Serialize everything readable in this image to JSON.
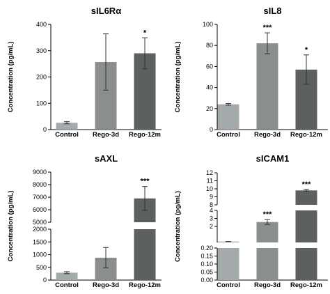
{
  "chart_data": [
    {
      "type": "bar",
      "title": "sIL6Rα",
      "ylabel": "Concentration (pg/mL)",
      "categories": [
        "Control",
        "Rego-3d",
        "Rego-12m"
      ],
      "values": [
        26,
        257,
        290
      ],
      "errors": [
        4,
        107,
        59
      ],
      "significance": [
        "",
        "",
        "*"
      ],
      "colors": [
        "#a4a9ab",
        "#8a8e8d",
        "#5c605f"
      ],
      "ylim": [
        0,
        400
      ],
      "yticks": [
        0,
        100,
        200,
        300,
        400
      ]
    },
    {
      "type": "bar",
      "title": "sIL8",
      "ylabel": "Concentration (pg/mL)",
      "categories": [
        "Control",
        "Rego-3d",
        "Rego-12m"
      ],
      "values": [
        24,
        82,
        57
      ],
      "errors": [
        0.8,
        10,
        14
      ],
      "significance": [
        "",
        "***",
        "*"
      ],
      "colors": [
        "#a4a9ab",
        "#8a8e8d",
        "#5c605f"
      ],
      "ylim": [
        0,
        100
      ],
      "yticks": [
        0,
        20,
        40,
        60,
        80,
        100
      ]
    },
    {
      "type": "bar",
      "title": "sAXL",
      "ylabel": "Concentration (pg/mL)",
      "categories": [
        "Control",
        "Rego-3d",
        "Rego-12m"
      ],
      "values": [
        290,
        880,
        6900
      ],
      "errors": [
        40,
        400,
        950
      ],
      "significance": [
        "",
        "",
        "***"
      ],
      "colors": [
        "#a4a9ab",
        "#8a8e8d",
        "#5c605f"
      ],
      "broken_axis": {
        "lower": [
          0,
          2000
        ],
        "upper": [
          5000,
          9000
        ],
        "lower_ticks": [
          0,
          500,
          1000,
          1500,
          2000
        ],
        "upper_ticks": [
          5000,
          6000,
          7000,
          8000,
          9000
        ]
      }
    },
    {
      "type": "bar",
      "title": "sICAM1",
      "ylabel": "Concentration (pg/mL)",
      "categories": [
        "Control",
        "Rego-3d",
        "Rego-12m"
      ],
      "values": [
        0.11,
        2.55,
        9.8
      ],
      "errors": [
        0.005,
        0.3,
        0.12
      ],
      "significance": [
        "",
        "***",
        "***"
      ],
      "colors": [
        "#a4a9ab",
        "#8a8e8d",
        "#5c605f"
      ],
      "broken_axis": {
        "segments": [
          {
            "range": [
              0,
              0.2
            ],
            "ticks": [
              "0.00",
              "0.05",
              "0.10",
              "0.15",
              "0.20"
            ]
          },
          {
            "range": [
              0,
              4
            ],
            "ticks": [
              "2",
              "3",
              "4"
            ]
          },
          {
            "range": [
              8,
              12
            ],
            "ticks": [
              "8",
              "9",
              "10",
              "11",
              "12"
            ]
          }
        ]
      }
    }
  ]
}
